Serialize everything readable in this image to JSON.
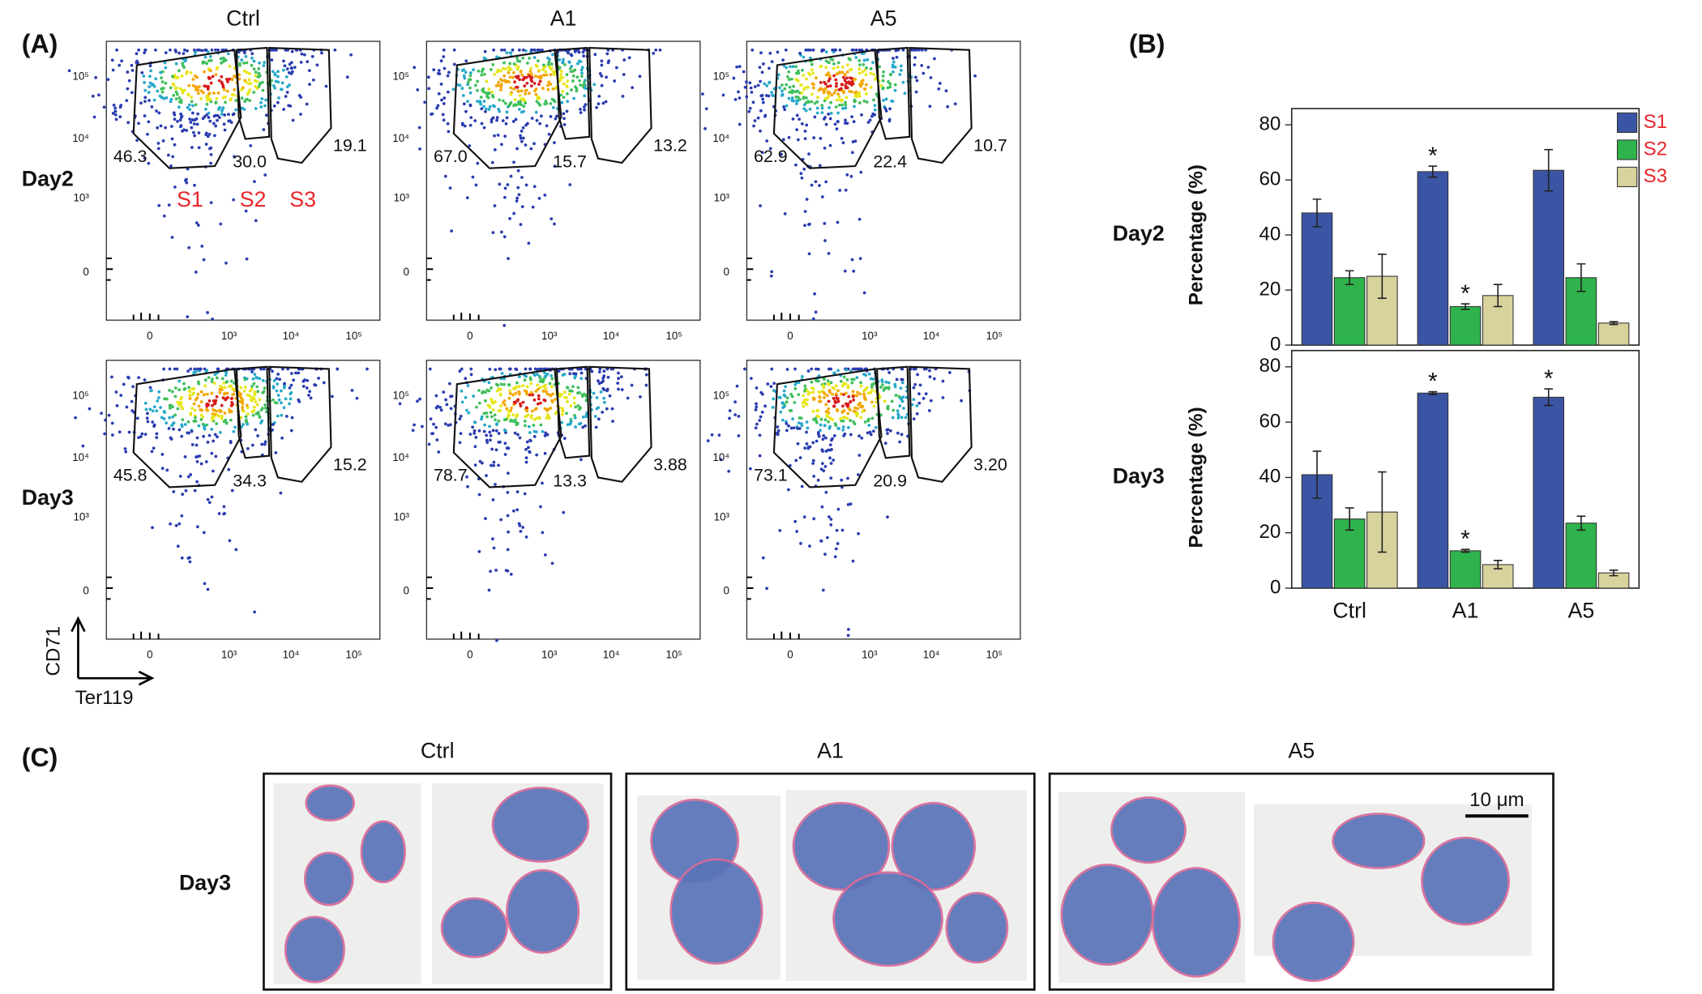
{
  "panel_labels": [
    "(A)",
    "(B)",
    "(C)"
  ],
  "flow": {
    "columns": [
      "Ctrl",
      "A1",
      "A5"
    ],
    "rows": [
      {
        "label": "Day2",
        "gates": [
          [
            "46.3",
            "30.0",
            "19.1"
          ],
          [
            "67.0",
            "15.7",
            "13.2"
          ],
          [
            "62.9",
            "22.4",
            "10.7"
          ]
        ]
      },
      {
        "label": "Day3",
        "gates": [
          [
            "45.8",
            "34.3",
            "15.2"
          ],
          [
            "78.7",
            "13.3",
            "3.88"
          ],
          [
            "73.1",
            "20.9",
            "3.20"
          ]
        ]
      }
    ],
    "gate_names": [
      "S1",
      "S2",
      "S3"
    ],
    "x_tick_labels": [
      "0",
      "10³",
      "10⁴",
      "10⁵"
    ],
    "y_tick_labels": [
      "10⁵",
      "10⁴",
      "10³",
      "0"
    ],
    "y_axis_label": "CD71",
    "x_axis_label": "Ter119"
  },
  "chart_data": [
    {
      "type": "bar",
      "row_label": "Day2",
      "y_label": "Percentage (%)",
      "categories": [
        null,
        null,
        null
      ],
      "ylim": [
        0,
        80
      ],
      "yticks": [
        0,
        20,
        40,
        60,
        80
      ],
      "legend": "top-right",
      "legend_text_color": "#e8262a",
      "series": [
        {
          "name": "S1",
          "color": "#3b55a5",
          "values": [
            48,
            63,
            63.5
          ],
          "errors": [
            5,
            2,
            7.5
          ],
          "annotations": [
            null,
            "*",
            null
          ]
        },
        {
          "name": "S2",
          "color": "#2fb34c",
          "values": [
            24.5,
            14,
            24.5
          ],
          "errors": [
            2.5,
            1,
            5
          ],
          "annotations": [
            null,
            "*",
            null
          ]
        },
        {
          "name": "S3",
          "color": "#d8d29d",
          "values": [
            25,
            18,
            8
          ],
          "errors": [
            8,
            4,
            0.5
          ],
          "annotations": [
            null,
            null,
            null
          ]
        }
      ]
    },
    {
      "type": "bar",
      "row_label": "Day3",
      "y_label": "Percentage (%)",
      "categories": [
        "Ctrl",
        "A1",
        "A5"
      ],
      "ylim": [
        0,
        80
      ],
      "yticks": [
        0,
        20,
        40,
        60,
        80
      ],
      "series": [
        {
          "color": "#3b55a5",
          "values": [
            41,
            70.5,
            69
          ],
          "errors": [
            8.5,
            0.5,
            3
          ],
          "annotations": [
            null,
            "*",
            "*"
          ]
        },
        {
          "color": "#2fb34c",
          "values": [
            25,
            13.5,
            23.5
          ],
          "errors": [
            4,
            0.5,
            2.5
          ],
          "annotations": [
            null,
            "*",
            null
          ]
        },
        {
          "color": "#d8d29d",
          "values": [
            27.5,
            8.5,
            5.5
          ],
          "errors": [
            14.5,
            1.5,
            1
          ],
          "annotations": [
            null,
            null,
            null
          ]
        }
      ]
    }
  ],
  "micrographs": {
    "row_label": "Day3",
    "columns": [
      "Ctrl",
      "A1",
      "A5"
    ],
    "scale_bar": "10 μm"
  }
}
